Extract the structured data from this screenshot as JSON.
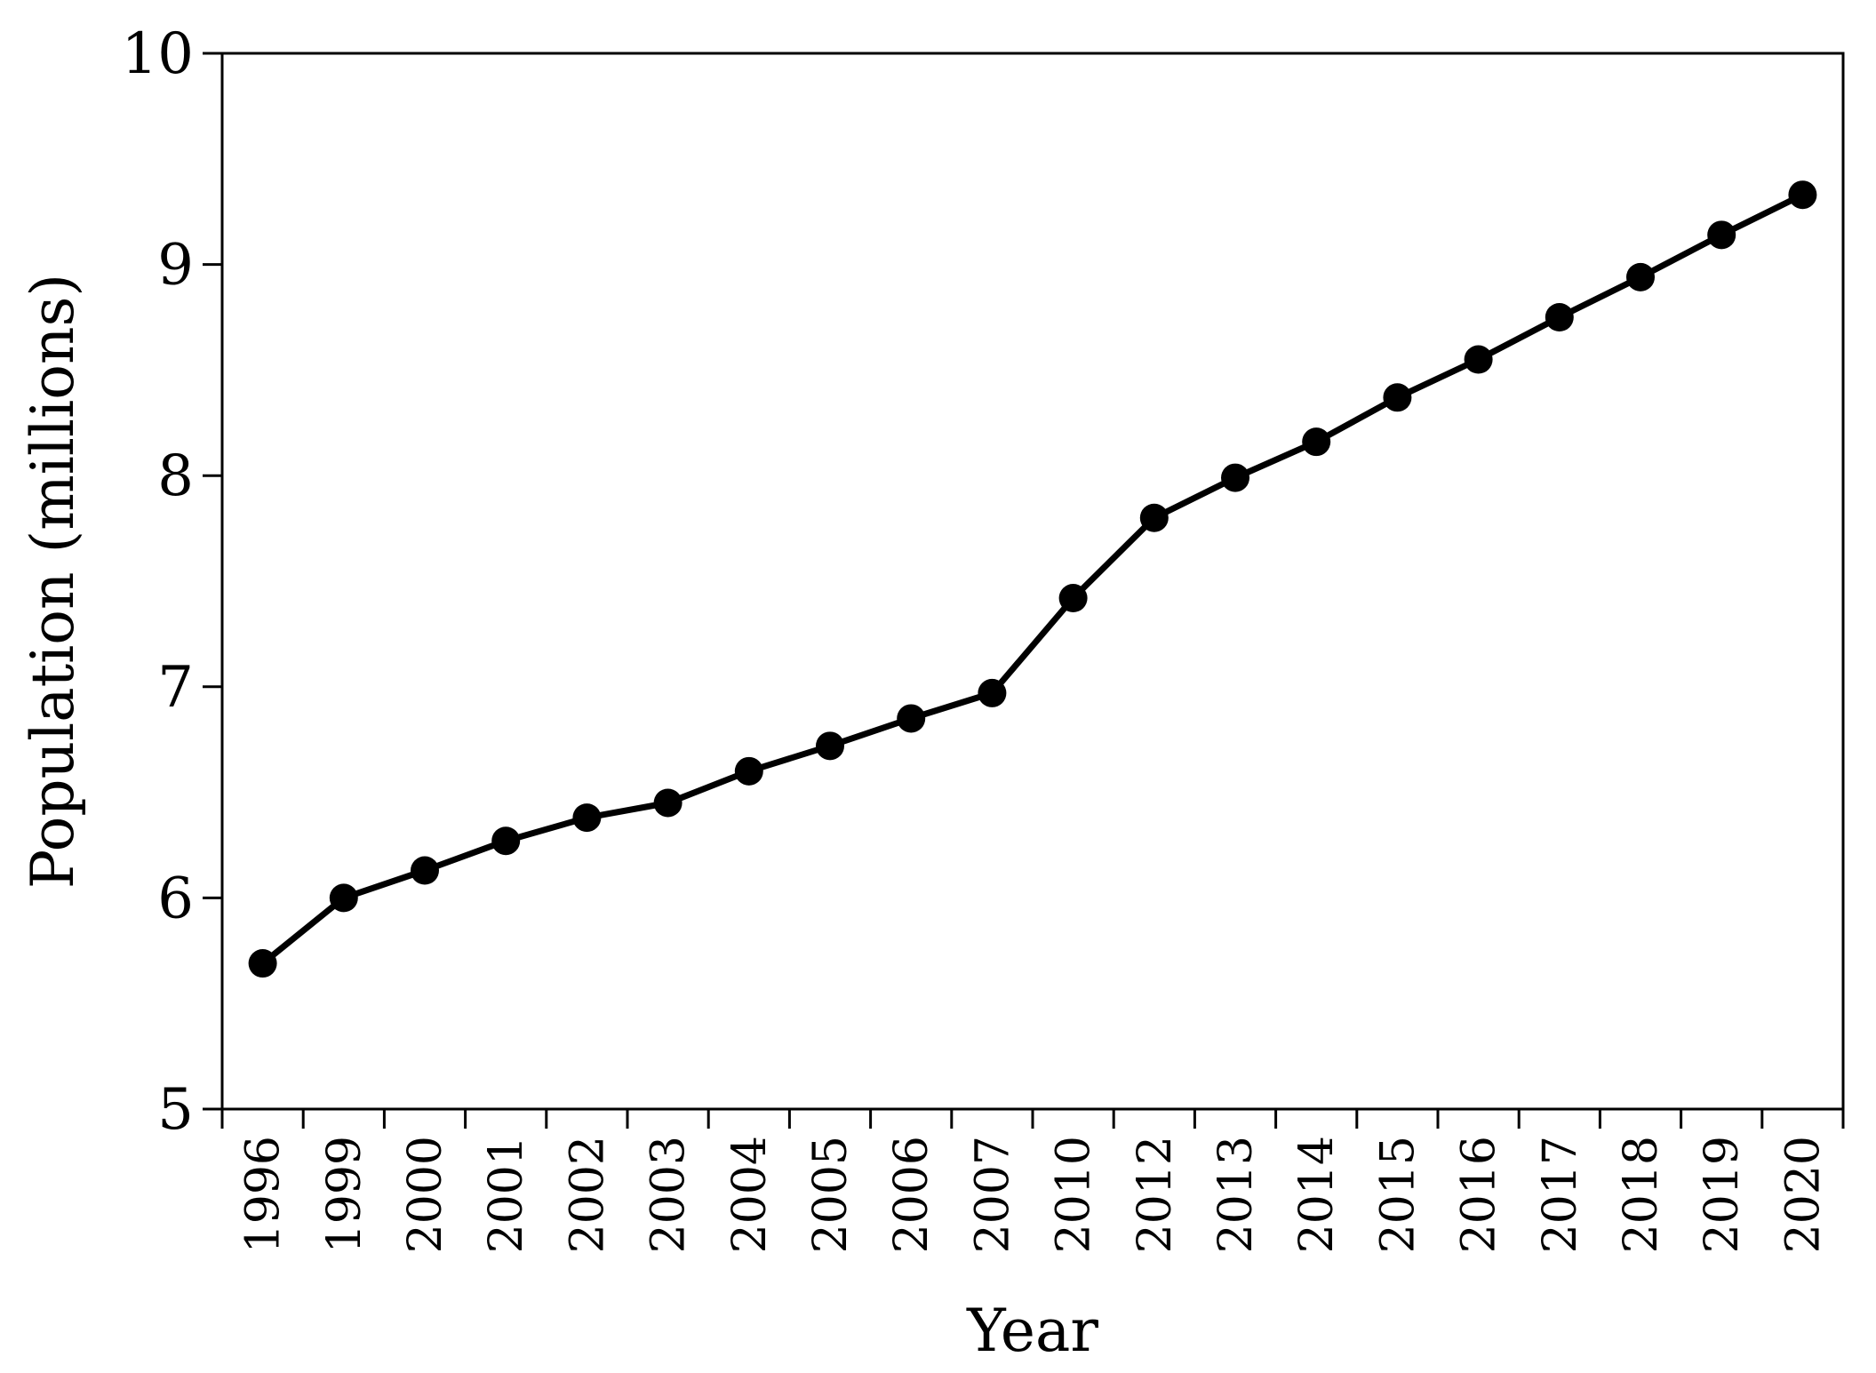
{
  "chart_data": {
    "type": "line",
    "title": "",
    "xlabel": "Year",
    "ylabel": "Population (millions)",
    "ylim": [
      5,
      10
    ],
    "yticks": [
      5,
      6,
      7,
      8,
      9,
      10
    ],
    "x_scale": "categorical",
    "grid": false,
    "legend": "none",
    "categories": [
      "1996",
      "1999",
      "2000",
      "2001",
      "2002",
      "2003",
      "2004",
      "2005",
      "2006",
      "2007",
      "2010",
      "2012",
      "2013",
      "2014",
      "2015",
      "2016",
      "2017",
      "2018",
      "2019",
      "2020"
    ],
    "series": [
      {
        "values": [
          5.69,
          6.0,
          6.13,
          6.27,
          6.38,
          6.45,
          6.6,
          6.72,
          6.85,
          6.97,
          7.42,
          7.8,
          7.99,
          8.16,
          8.37,
          8.55,
          8.75,
          8.94,
          9.14,
          9.33
        ],
        "color": "#000000",
        "marker": "circle"
      }
    ]
  }
}
